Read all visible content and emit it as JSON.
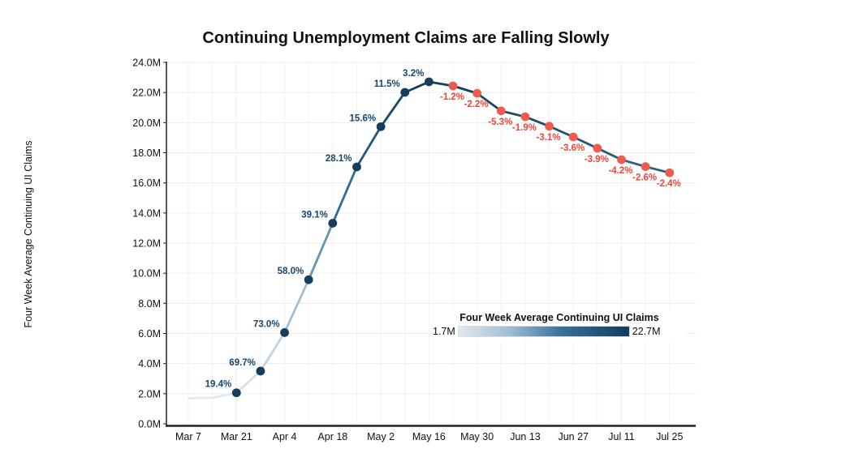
{
  "title": "Continuing Unemployment Claims are Falling Slowly",
  "y_axis_title": "Four Week Average Continuing UI Claims",
  "legend": {
    "title": "Four Week Average Continuing UI Claims",
    "min_label": "1.7M",
    "max_label": "22.7M"
  },
  "colors": {
    "increase_label": "#17456a",
    "decrease_label": "#ee4437",
    "marker_increase": "#153e5e",
    "marker_decrease": "#ee5a4c",
    "axis_line": "#222222",
    "grid_line": "#ededed",
    "tick_text": "#111111",
    "line_gradient": [
      {
        "t": 0.0,
        "color": "#e3e9ef"
      },
      {
        "t": 0.3,
        "color": "#9fbdd3"
      },
      {
        "t": 0.6,
        "color": "#39719a"
      },
      {
        "t": 1.0,
        "color": "#123d5c"
      }
    ]
  },
  "chart_data": {
    "type": "line",
    "title": "Continuing Unemployment Claims are Falling Slowly",
    "xlabel": "",
    "ylabel": "Four Week Average Continuing UI Claims",
    "x": [
      "Mar 7",
      "Mar 14",
      "Mar 21",
      "Mar 28",
      "Apr 4",
      "Apr 11",
      "Apr 18",
      "Apr 25",
      "May 2",
      "May 9",
      "May 16",
      "May 23",
      "May 30",
      "Jun 6",
      "Jun 13",
      "Jun 20",
      "Jun 27",
      "Jul 4",
      "Jul 11",
      "Jul 18",
      "Jul 25"
    ],
    "values_millions": [
      1.7,
      1.73,
      2.06,
      3.5,
      6.06,
      9.57,
      13.32,
      17.06,
      19.73,
      22.01,
      22.71,
      22.44,
      21.95,
      20.78,
      20.39,
      19.76,
      19.05,
      18.3,
      17.54,
      17.08,
      16.67
    ],
    "point_labels": [
      "",
      "",
      "19.4%",
      "69.7%",
      "73.0%",
      "58.0%",
      "39.1%",
      "28.1%",
      "15.6%",
      "11.5%",
      "3.2%",
      "-1.2%",
      "-2.2%",
      "-5.3%",
      "-1.9%",
      "-3.1%",
      "-3.6%",
      "-3.9%",
      "-4.2%",
      "-2.6%",
      "-2.4%"
    ],
    "x_tick_labels": [
      "Mar 7",
      "Mar 21",
      "Apr 4",
      "Apr 18",
      "May 2",
      "May 16",
      "May 30",
      "Jun 13",
      "Jun 27",
      "Jul 11",
      "Jul 25"
    ],
    "y_tick_labels": [
      "0.0M",
      "2.0M",
      "4.0M",
      "6.0M",
      "8.0M",
      "10.0M",
      "12.0M",
      "14.0M",
      "16.0M",
      "18.0M",
      "20.0M",
      "22.0M",
      "24.0M"
    ],
    "ylim": [
      0,
      24
    ],
    "color_scale_range_millions": [
      1.7,
      22.7
    ],
    "grid": true,
    "legend_position": "inside-lower-right"
  }
}
